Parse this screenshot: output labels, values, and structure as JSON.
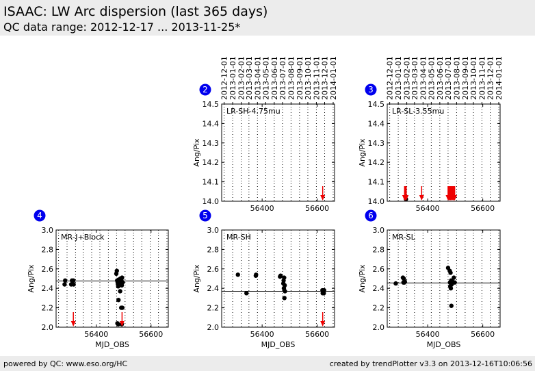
{
  "header": {
    "title": "ISAAC: LW Arc dispersion (last 365 days)",
    "subtitle": "QC data range: 2012-12-17 ... 2013-11-25*"
  },
  "footer": {
    "left": "powered by QC: www.eso.org/HC",
    "right": "created by trendPlotter v3.3 on 2013-12-16T10:06:56"
  },
  "colors": {
    "badge": "#0000ee",
    "outlier_arrow": "#ee0000",
    "points": "#000000",
    "median_line": "#000000"
  },
  "date_ticks": [
    "2012-12-01",
    "2013-01-01",
    "2013-02-01",
    "2013-03-01",
    "2013-04-01",
    "2013-05-01",
    "2013-06-01",
    "2013-07-01",
    "2013-08-01",
    "2013-09-01",
    "2013-10-01",
    "2013-11-01",
    "2013-12-01",
    "2014-01-01"
  ],
  "chart_data": [
    {
      "type": "scatter",
      "badge": "2",
      "label": "LR-SH-4.75mu",
      "xlabel": "",
      "ylabel": "Ang/Pix",
      "xlim": [
        56253,
        56663
      ],
      "ylim": [
        14.0,
        14.5
      ],
      "xticks": [
        56400,
        56600
      ],
      "yticks": [
        14.0,
        14.1,
        14.2,
        14.3,
        14.4,
        14.5
      ],
      "show_date_axis": true,
      "grid": "vertical dotted at month starts",
      "median": null,
      "points": [],
      "outliers_below": [
        56620
      ]
    },
    {
      "type": "scatter",
      "badge": "3",
      "label": "LR-SL-3.55mu",
      "xlabel": "",
      "ylabel": "Ang/Pix",
      "xlim": [
        56253,
        56663
      ],
      "ylim": [
        14.0,
        14.5
      ],
      "xticks": [
        56400,
        56600
      ],
      "yticks": [
        14.0,
        14.1,
        14.2,
        14.3,
        14.4,
        14.5
      ],
      "show_date_axis": true,
      "grid": "vertical dotted at month starts",
      "median": null,
      "points": [
        [
          56321,
          14.0
        ]
      ],
      "outliers_below": [
        56316,
        56319,
        56322,
        56378,
        56474,
        56477,
        56480,
        56483,
        56486,
        56489,
        56492,
        56495,
        56498
      ]
    },
    {
      "type": "scatter",
      "badge": "4",
      "label": "MR-J+Block",
      "xlabel": "MJD_OBS",
      "ylabel": "Ang/Pix",
      "xlim": [
        56253,
        56663
      ],
      "ylim": [
        2.0,
        3.0
      ],
      "xticks": [
        56400,
        56600
      ],
      "yticks": [
        2.0,
        2.2,
        2.4,
        2.6,
        2.8,
        3.0
      ],
      "show_date_axis": false,
      "grid": "vertical dotted at month starts",
      "median": 2.475,
      "points": [
        [
          56284,
          2.44
        ],
        [
          56286,
          2.48
        ],
        [
          56308,
          2.44
        ],
        [
          56311,
          2.48
        ],
        [
          56313,
          2.45
        ],
        [
          56316,
          2.48
        ],
        [
          56317,
          2.44
        ],
        [
          56473,
          2.55
        ],
        [
          56475,
          2.58
        ],
        [
          56476,
          2.48
        ],
        [
          56478,
          2.46
        ],
        [
          56479,
          2.44
        ],
        [
          56480,
          2.42
        ],
        [
          56481,
          2.28
        ],
        [
          56482,
          2.49
        ],
        [
          56483,
          2.46
        ],
        [
          56484,
          2.44
        ],
        [
          56485,
          2.47
        ],
        [
          56486,
          2.45
        ],
        [
          56487,
          2.37
        ],
        [
          56488,
          2.5
        ],
        [
          56489,
          2.44
        ],
        [
          56490,
          2.46
        ],
        [
          56491,
          2.2
        ],
        [
          56492,
          2.48
        ],
        [
          56493,
          2.43
        ],
        [
          56494,
          2.51
        ],
        [
          56495,
          2.2
        ],
        [
          56496,
          2.46
        ],
        [
          56477,
          2.04
        ],
        [
          56480,
          2.03
        ],
        [
          56493,
          2.03
        ]
      ],
      "outliers_below": [
        56316,
        56494
      ]
    },
    {
      "type": "scatter",
      "badge": "5",
      "label": "MR-SH",
      "xlabel": "MJD_OBS",
      "ylabel": "Ang/Pix",
      "xlim": [
        56253,
        56663
      ],
      "ylim": [
        2.0,
        3.0
      ],
      "xticks": [
        56400,
        56600
      ],
      "yticks": [
        2.0,
        2.2,
        2.4,
        2.6,
        2.8,
        3.0
      ],
      "show_date_axis": false,
      "grid": "vertical dotted at month starts",
      "median": 2.37,
      "points": [
        [
          56312,
          2.54
        ],
        [
          56343,
          2.35
        ],
        [
          56377,
          2.53
        ],
        [
          56378,
          2.54
        ],
        [
          56465,
          2.52
        ],
        [
          56467,
          2.53
        ],
        [
          56477,
          2.45
        ],
        [
          56478,
          2.48
        ],
        [
          56479,
          2.4
        ],
        [
          56480,
          2.51
        ],
        [
          56481,
          2.3
        ],
        [
          56482,
          2.43
        ],
        [
          56483,
          2.37
        ],
        [
          56619,
          2.38
        ],
        [
          56620,
          2.35
        ],
        [
          56622,
          2.37
        ],
        [
          56624,
          2.35
        ],
        [
          56625,
          2.38
        ]
      ],
      "outliers_below": [
        56620
      ]
    },
    {
      "type": "scatter",
      "badge": "6",
      "label": "MR-SL",
      "xlabel": "MJD_OBS",
      "ylabel": "Ang/Pix",
      "xlim": [
        56253,
        56663
      ],
      "ylim": [
        2.0,
        3.0
      ],
      "xticks": [
        56400,
        56600
      ],
      "yticks": [
        2.0,
        2.2,
        2.4,
        2.6,
        2.8,
        3.0
      ],
      "show_date_axis": false,
      "grid": "vertical dotted at month starts",
      "median": 2.455,
      "points": [
        [
          56284,
          2.45
        ],
        [
          56310,
          2.51
        ],
        [
          56312,
          2.46
        ],
        [
          56313,
          2.5
        ],
        [
          56315,
          2.46
        ],
        [
          56317,
          2.47
        ],
        [
          56474,
          2.61
        ],
        [
          56480,
          2.58
        ],
        [
          56481,
          2.46
        ],
        [
          56482,
          2.42
        ],
        [
          56483,
          2.56
        ],
        [
          56484,
          2.4
        ],
        [
          56485,
          2.48
        ],
        [
          56486,
          2.22
        ],
        [
          56487,
          2.44
        ],
        [
          56490,
          2.47
        ],
        [
          56495,
          2.51
        ],
        [
          56498,
          2.46
        ]
      ],
      "outliers_below": []
    }
  ]
}
